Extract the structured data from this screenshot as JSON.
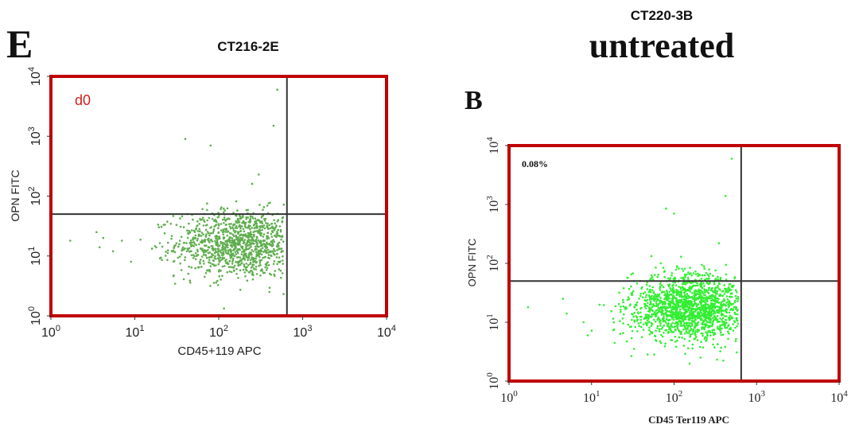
{
  "left_panel": {
    "panel_letter": "E",
    "header": "CT216-2E",
    "region_label": "d0"
  },
  "right_panel": {
    "header": "CT220-3B",
    "subheader": "untreated",
    "panel_letter": "B",
    "quadrant_percent": "0.08%"
  },
  "colors": {
    "frame": "#c00000",
    "left_points": "#5fae4e",
    "right_points": "#33ee33",
    "gate_lines": "#333333",
    "region_label": "#d42020"
  },
  "chart_data": [
    {
      "type": "scatter",
      "title": "CT216-2E",
      "xlabel": "CD45+119  APC",
      "ylabel": "OPN FITC",
      "x_scale": "log",
      "y_scale": "log",
      "xlim": [
        1,
        10000
      ],
      "ylim": [
        1,
        10000
      ],
      "x_ticks": [
        1,
        10,
        100,
        1000,
        10000
      ],
      "y_ticks": [
        1,
        10,
        100,
        1000,
        10000
      ],
      "gate_x": 650,
      "gate_y": 50,
      "annotation": "d0",
      "population": {
        "n": 1100,
        "x_center": 180,
        "x_spread_decades": 0.38,
        "x_range": [
          10,
          600
        ],
        "y_center": 16,
        "y_spread_decades": 0.28,
        "y_range": [
          1.1,
          140
        ]
      },
      "outliers": [
        [
          1.7,
          18
        ],
        [
          3.5,
          25
        ],
        [
          4.2,
          20
        ],
        [
          3.8,
          14
        ],
        [
          5.5,
          12
        ],
        [
          7,
          18
        ],
        [
          9,
          8
        ],
        [
          40,
          900
        ],
        [
          80,
          700
        ],
        [
          450,
          1500
        ],
        [
          500,
          6000
        ],
        [
          300,
          230
        ],
        [
          250,
          160
        ]
      ]
    },
    {
      "type": "scatter",
      "title": "untreated",
      "xlabel": "CD45 Ter119 APC",
      "ylabel": "OPN FITC",
      "x_scale": "log",
      "y_scale": "log",
      "xlim": [
        1,
        10000
      ],
      "ylim": [
        1,
        10000
      ],
      "x_ticks": [
        1,
        10,
        100,
        1000,
        10000
      ],
      "y_ticks": [
        1,
        10,
        100,
        1000,
        10000
      ],
      "gate_x": 650,
      "gate_y": 50,
      "annotation": "0.08%",
      "population": {
        "n": 1600,
        "x_center": 150,
        "x_spread_decades": 0.35,
        "x_range": [
          10,
          600
        ],
        "y_center": 18,
        "y_spread_decades": 0.28,
        "y_range": [
          1.2,
          140
        ]
      },
      "outliers": [
        [
          1.7,
          18
        ],
        [
          4.5,
          25
        ],
        [
          5,
          14
        ],
        [
          8,
          10
        ],
        [
          9,
          6
        ],
        [
          80,
          850
        ],
        [
          100,
          700
        ],
        [
          500,
          6000
        ],
        [
          420,
          1400
        ],
        [
          350,
          220
        ]
      ]
    }
  ]
}
